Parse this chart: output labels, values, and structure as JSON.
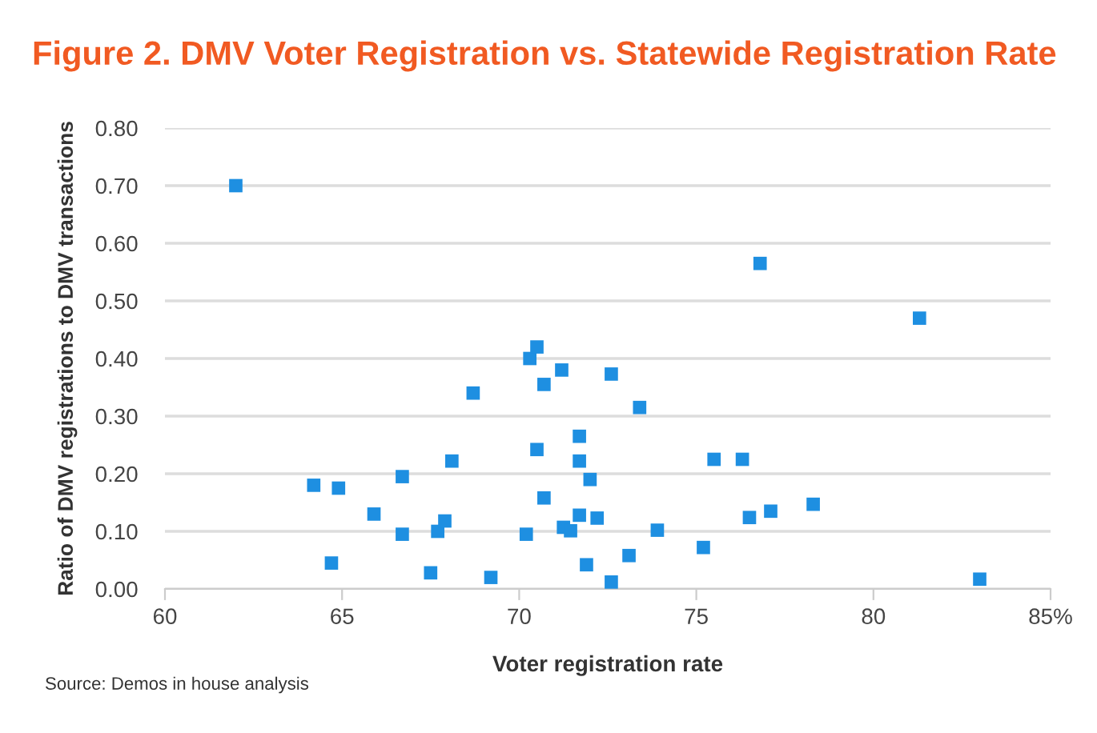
{
  "chart_data": {
    "type": "scatter",
    "title": "Figure 2. DMV Voter Registration vs. Statewide Registration Rate",
    "xlabel": "Voter registration rate",
    "ylabel": "Ratio of DMV registrations to DMV transactions",
    "annotations": [
      "Source: Demos in house analysis"
    ],
    "x": [
      62.0,
      64.2,
      64.9,
      64.7,
      65.9,
      66.7,
      66.7,
      67.5,
      67.7,
      67.9,
      68.1,
      68.7,
      69.2,
      70.2,
      70.3,
      70.5,
      70.5,
      70.7,
      70.7,
      71.2,
      71.7,
      71.7,
      71.25,
      71.45,
      71.7,
      72.0,
      71.9,
      72.2,
      72.6,
      72.6,
      73.1,
      73.4,
      73.9,
      75.2,
      75.5,
      76.3,
      76.5,
      76.8,
      77.1,
      78.3,
      81.3,
      83.0
    ],
    "series": [
      {
        "color": "#1e8fe1",
        "values": [
          0.7,
          0.18,
          0.175,
          0.045,
          0.13,
          0.195,
          0.095,
          0.028,
          0.1,
          0.118,
          0.222,
          0.34,
          0.02,
          0.095,
          0.4,
          0.42,
          0.242,
          0.158,
          0.355,
          0.38,
          0.265,
          0.222,
          0.107,
          0.101,
          0.128,
          0.19,
          0.042,
          0.123,
          0.012,
          0.373,
          0.058,
          0.315,
          0.102,
          0.072,
          0.225,
          0.225,
          0.124,
          0.565,
          0.135,
          0.147,
          0.47,
          0.017
        ]
      }
    ],
    "xlim": [
      60,
      85
    ],
    "xticks": [
      60,
      65,
      70,
      75,
      80,
      {
        "value": 85,
        "label": "85%"
      }
    ],
    "ylim": [
      0,
      0.8
    ],
    "yticks": [
      {
        "value": 0,
        "label": "0.00"
      },
      {
        "value": 0.1,
        "label": "0.10"
      },
      {
        "value": 0.2,
        "label": "0.20"
      },
      {
        "value": 0.3,
        "label": "0.30"
      },
      {
        "value": 0.4,
        "label": "0.40"
      },
      {
        "value": 0.5,
        "label": "0.50"
      },
      {
        "value": 0.6,
        "label": "0.60"
      },
      {
        "value": 0.7,
        "label": "0.70"
      },
      {
        "value": 0.8,
        "label": "0.80"
      }
    ],
    "grid": "y",
    "marker": "square",
    "legend": false
  }
}
